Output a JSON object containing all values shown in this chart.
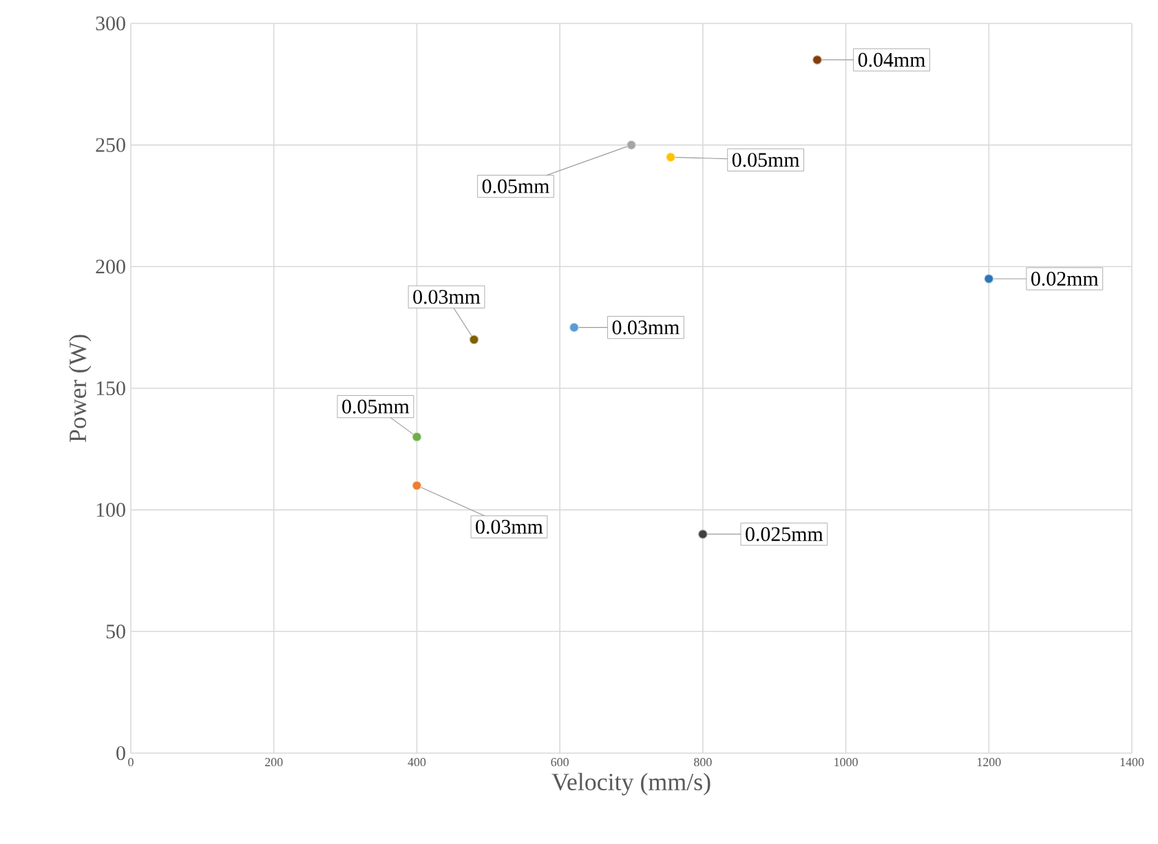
{
  "chart_data": {
    "type": "scatter",
    "xlabel": "Velocity  (mm/s)",
    "ylabel": "Power (W)",
    "x": [
      960,
      700,
      755,
      1200,
      480,
      620,
      400,
      400,
      800
    ],
    "values": [
      285,
      250,
      245,
      195,
      170,
      175,
      130,
      110,
      90
    ],
    "colors": [
      "#843c0c",
      "#a5a5a5",
      "#ffc000",
      "#2e75b6",
      "#7f6000",
      "#5b9bd5",
      "#70ad47",
      "#ed7d31",
      "#404040"
    ],
    "xlim": [
      0,
      1400
    ],
    "ylim": [
      0,
      300
    ],
    "xticks": [
      0,
      200,
      400,
      600,
      800,
      1000,
      1200,
      1400
    ],
    "yticks": [
      0,
      50,
      100,
      150,
      200,
      250,
      300
    ],
    "grid": true,
    "marker": "circle",
    "annotations": [
      {
        "text": "0.04mm",
        "x": 960,
        "y": 285
      },
      {
        "text": "0.05mm",
        "x": 700,
        "y": 250
      },
      {
        "text": "0.05mm",
        "x": 755,
        "y": 245
      },
      {
        "text": "0.02mm",
        "x": 1200,
        "y": 195
      },
      {
        "text": "0.03mm",
        "x": 480,
        "y": 170
      },
      {
        "text": "0.03mm",
        "x": 620,
        "y": 175
      },
      {
        "text": "0.05mm",
        "x": 400,
        "y": 130
      },
      {
        "text": "0.03mm",
        "x": 400,
        "y": 110
      },
      {
        "text": "0.025mm",
        "x": 800,
        "y": 90
      }
    ]
  }
}
